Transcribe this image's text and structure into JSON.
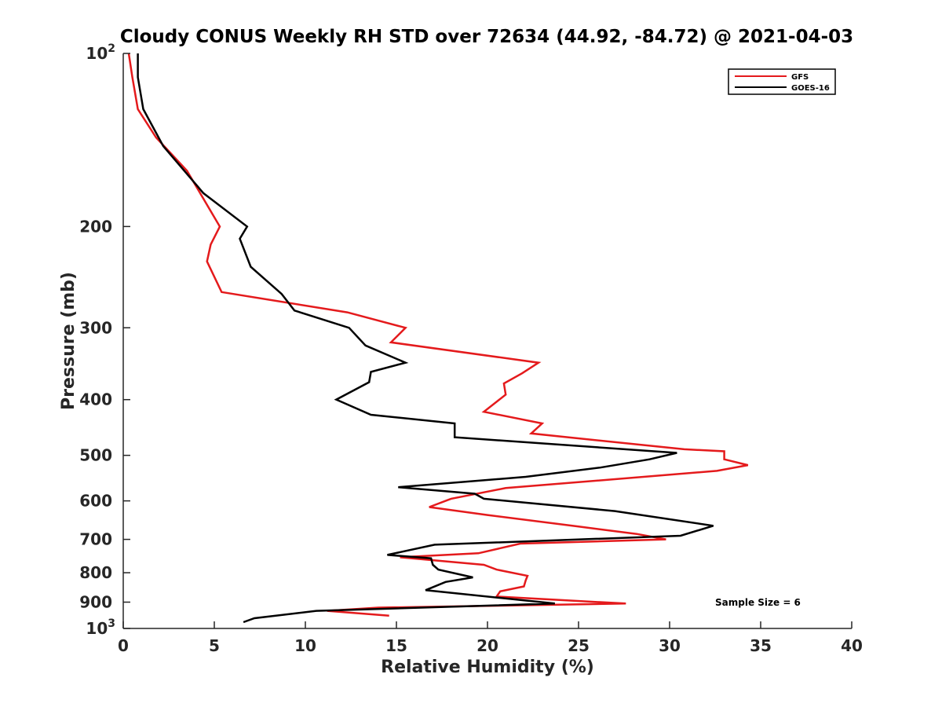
{
  "chart_data": {
    "type": "line",
    "title": "Cloudy CONUS Weekly RH STD over 72634 (44.92, -84.72) @ 2021-04-03",
    "xlabel": "Relative Humidity (%)",
    "ylabel": "Pressure (mb)",
    "xlim": [
      0,
      40
    ],
    "ylim": [
      100,
      1000
    ],
    "y_scale": "log",
    "y_reversed": true,
    "x_ticks": [
      "0",
      "5",
      "10",
      "15",
      "20",
      "25",
      "30",
      "35",
      "40"
    ],
    "y_ticks": [
      {
        "value": 100,
        "base": "10",
        "exp": "2"
      },
      {
        "value": 200,
        "label": "200"
      },
      {
        "value": 300,
        "label": "300"
      },
      {
        "value": 400,
        "label": "400"
      },
      {
        "value": 500,
        "label": "500"
      },
      {
        "value": 600,
        "label": "600"
      },
      {
        "value": 700,
        "label": "700"
      },
      {
        "value": 800,
        "label": "800"
      },
      {
        "value": 900,
        "label": "900"
      },
      {
        "value": 1000,
        "base": "10",
        "exp": "3"
      }
    ],
    "grid": false,
    "legend_position": "top-right",
    "series": [
      {
        "name": "GFS",
        "color": "#e41a1c",
        "points": [
          [
            0.3,
            100
          ],
          [
            0.5,
            110
          ],
          [
            0.8,
            125
          ],
          [
            1.8,
            140
          ],
          [
            3.5,
            160
          ],
          [
            5.3,
            200
          ],
          [
            4.8,
            215
          ],
          [
            4.6,
            230
          ],
          [
            5.4,
            260
          ],
          [
            12.3,
            282
          ],
          [
            15.5,
            300
          ],
          [
            14.7,
            318
          ],
          [
            22.8,
            345
          ],
          [
            21.9,
            360
          ],
          [
            20.9,
            375
          ],
          [
            21.0,
            392
          ],
          [
            19.8,
            420
          ],
          [
            23.0,
            440
          ],
          [
            22.4,
            458
          ],
          [
            30.8,
            488
          ],
          [
            33.0,
            492
          ],
          [
            33.0,
            508
          ],
          [
            34.3,
            520
          ],
          [
            32.6,
            532
          ],
          [
            21.0,
            570
          ],
          [
            18.0,
            595
          ],
          [
            16.8,
            615
          ],
          [
            20.0,
            635
          ],
          [
            25.0,
            665
          ],
          [
            28.2,
            685
          ],
          [
            29.8,
            700
          ],
          [
            21.8,
            712
          ],
          [
            19.5,
            740
          ],
          [
            15.2,
            752
          ],
          [
            19.8,
            775
          ],
          [
            20.5,
            790
          ],
          [
            22.2,
            810
          ],
          [
            22.1,
            825
          ],
          [
            22.0,
            845
          ],
          [
            20.7,
            862
          ],
          [
            20.5,
            880
          ],
          [
            27.6,
            905
          ],
          [
            14.0,
            920
          ],
          [
            11.2,
            932
          ],
          [
            14.6,
            950
          ]
        ]
      },
      {
        "name": "GOES-16",
        "color": "#000000",
        "points": [
          [
            0.8,
            100
          ],
          [
            0.8,
            110
          ],
          [
            1.1,
            125
          ],
          [
            2.2,
            145
          ],
          [
            4.4,
            175
          ],
          [
            6.8,
            200
          ],
          [
            6.4,
            210
          ],
          [
            7.0,
            235
          ],
          [
            8.7,
            262
          ],
          [
            9.4,
            280
          ],
          [
            12.4,
            300
          ],
          [
            13.3,
            322
          ],
          [
            15.5,
            345
          ],
          [
            13.6,
            358
          ],
          [
            13.5,
            373
          ],
          [
            11.7,
            400
          ],
          [
            13.6,
            425
          ],
          [
            18.2,
            440
          ],
          [
            18.2,
            465
          ],
          [
            30.4,
            495
          ],
          [
            28.9,
            508
          ],
          [
            26.2,
            525
          ],
          [
            22.1,
            545
          ],
          [
            15.1,
            568
          ],
          [
            19.3,
            583
          ],
          [
            19.8,
            595
          ],
          [
            27.0,
            625
          ],
          [
            32.4,
            663
          ],
          [
            30.6,
            690
          ],
          [
            17.1,
            715
          ],
          [
            14.5,
            745
          ],
          [
            16.9,
            755
          ],
          [
            17.0,
            775
          ],
          [
            17.3,
            790
          ],
          [
            19.2,
            815
          ],
          [
            17.7,
            830
          ],
          [
            16.6,
            858
          ],
          [
            23.7,
            905
          ],
          [
            10.6,
            932
          ],
          [
            7.2,
            960
          ],
          [
            6.6,
            975
          ]
        ]
      }
    ],
    "annotation": "Sample Size = 6"
  }
}
